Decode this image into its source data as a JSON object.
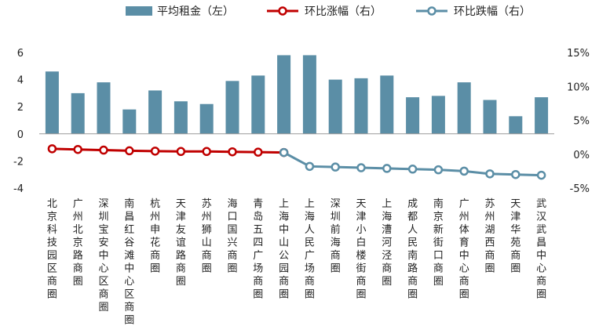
{
  "chart_data": {
    "type": "bar+line",
    "categories": [
      "北京科技园区商圈",
      "广州北京路商圈",
      "深圳宝安中心区商圈",
      "南昌红谷滩中心区商圈",
      "杭州申花商圈",
      "天津友谊路商圈",
      "苏州狮山商圈",
      "海口国兴商圈",
      "青岛五四广场商圈",
      "上海中山公园商圈",
      "上海人民广场商圈",
      "深圳前海商圈",
      "天津小白楼街商圈",
      "上海漕河泾商圈",
      "成都人民南路商圈",
      "南京新街口商圈",
      "广州体育中心商圈",
      "苏州湖西商圈",
      "天津华苑商圈",
      "武汉武昌中心商圈"
    ],
    "series": [
      {
        "name": "平均租金（左）",
        "kind": "bar",
        "axis": "left",
        "color": "#5b8ea6",
        "values": [
          4.6,
          3.0,
          3.8,
          1.8,
          3.2,
          2.4,
          2.2,
          3.9,
          4.3,
          5.8,
          5.8,
          4.0,
          4.1,
          4.3,
          2.7,
          2.8,
          3.8,
          2.5,
          1.3,
          2.7
        ]
      },
      {
        "name": "环比涨幅（右）",
        "kind": "line",
        "axis": "right",
        "color": "#c00000",
        "values": [
          0.8,
          0.7,
          0.6,
          0.5,
          0.45,
          0.4,
          0.4,
          0.35,
          0.3,
          0.25,
          null,
          null,
          null,
          null,
          null,
          null,
          null,
          null,
          null,
          null
        ]
      },
      {
        "name": "环比跌幅（右）",
        "kind": "line",
        "axis": "right",
        "color": "#5b8ea6",
        "values": [
          null,
          null,
          null,
          null,
          null,
          null,
          null,
          null,
          null,
          0.25,
          -1.8,
          -1.9,
          -2.0,
          -2.1,
          -2.2,
          -2.3,
          -2.5,
          -2.9,
          -3.0,
          -3.1
        ]
      }
    ],
    "left_axis": {
      "min": -4,
      "max": 6,
      "ticks": [
        "-4",
        "-2",
        "0",
        "2",
        "4",
        "6"
      ]
    },
    "right_axis": {
      "min": -5,
      "max": 15,
      "ticks": [
        "-5%",
        "0%",
        "5%",
        "10%",
        "15%"
      ]
    },
    "legend_position": "top",
    "grid": false
  }
}
